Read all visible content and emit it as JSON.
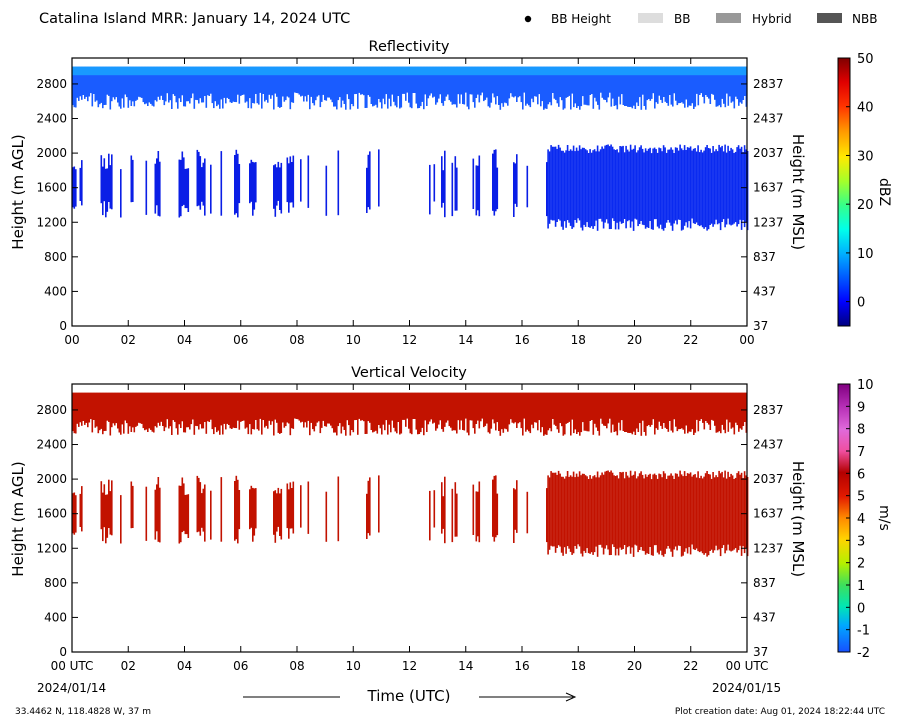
{
  "header": {
    "title": "Catalina Island MRR:  January 14, 2024 UTC",
    "legend": [
      {
        "label": "BB Height",
        "kind": "dot",
        "color": "#000000"
      },
      {
        "label": "BB",
        "kind": "swatch",
        "color": "#dddddd"
      },
      {
        "label": "Hybrid",
        "kind": "swatch",
        "color": "#999999"
      },
      {
        "label": "NBB",
        "kind": "swatch",
        "color": "#555555"
      }
    ]
  },
  "footer": {
    "location": "33.4462 N, 118.4828 W, 37 m",
    "creation": "Plot creation date: Aug 01, 2024 18:22:44 UTC",
    "start_date": "2024/01/14",
    "end_date": "2024/01/15",
    "time_label": "Time (UTC)"
  },
  "chart_data": [
    {
      "type": "heatmap",
      "title": "Reflectivity",
      "x_ticks": [
        "00",
        "02",
        "04",
        "06",
        "08",
        "10",
        "12",
        "14",
        "16",
        "18",
        "20",
        "22",
        "00"
      ],
      "x_range": [
        0,
        24
      ],
      "ylabel_left": "Height (m AGL)",
      "ylabel_right": "Height (m MSL)",
      "y_ticks_left": [
        0,
        400,
        800,
        1200,
        1600,
        2000,
        2400,
        2800
      ],
      "y_ticks_right": [
        37,
        437,
        837,
        1237,
        1637,
        2037,
        2437,
        2837
      ],
      "ylim": [
        0,
        3100
      ],
      "colorbar": {
        "label": "dBZ",
        "ticks": [
          0,
          10,
          20,
          30,
          40,
          50
        ],
        "range": [
          -5,
          50
        ]
      },
      "regions": [
        {
          "x": [
            0,
            24
          ],
          "y_bottom": [
            2500,
            2700
          ],
          "y_top": 3000,
          "value_color": "#1a5cff",
          "top_color": "#19b4ff"
        },
        {
          "x": [
            0,
            16.9
          ],
          "y_bottom": [
            1250,
            1450
          ],
          "y_top": [
            1800,
            2050
          ],
          "value_color": "#0a1ee6",
          "coverage": 0.55
        },
        {
          "x": [
            16.9,
            24
          ],
          "y_bottom": [
            1100,
            1250
          ],
          "y_top": [
            2000,
            2100
          ],
          "value_color": "#0a2af0",
          "coverage": 1.0
        }
      ]
    },
    {
      "type": "heatmap",
      "title": "Vertical Velocity",
      "x_ticks": [
        "00 UTC",
        "02",
        "04",
        "06",
        "08",
        "10",
        "12",
        "14",
        "16",
        "18",
        "20",
        "22",
        "00 UTC"
      ],
      "x_range": [
        0,
        24
      ],
      "ylabel_left": "Height (m AGL)",
      "ylabel_right": "Height (m MSL)",
      "y_ticks_left": [
        0,
        400,
        800,
        1200,
        1600,
        2000,
        2400,
        2800
      ],
      "y_ticks_right": [
        37,
        437,
        837,
        1237,
        1637,
        2037,
        2437,
        2837
      ],
      "ylim": [
        0,
        3100
      ],
      "colorbar": {
        "label": "m/s",
        "ticks": [
          -2,
          -1,
          0,
          1,
          2,
          3,
          4,
          5,
          6,
          7,
          8,
          9,
          10
        ],
        "range": [
          -2,
          10
        ]
      },
      "regions": [
        {
          "x": [
            0,
            24
          ],
          "y_bottom": [
            2500,
            2700
          ],
          "y_top": 3000,
          "value_color": "#c21200",
          "top_color": "#c21200"
        },
        {
          "x": [
            0,
            16.9
          ],
          "y_bottom": [
            1250,
            1450
          ],
          "y_top": [
            1800,
            2050
          ],
          "value_color": "#c21200",
          "coverage": 0.55
        },
        {
          "x": [
            16.9,
            24
          ],
          "y_bottom": [
            1100,
            1250
          ],
          "y_top": [
            2000,
            2100
          ],
          "value_color": "#c21200",
          "coverage": 1.0
        }
      ]
    }
  ]
}
